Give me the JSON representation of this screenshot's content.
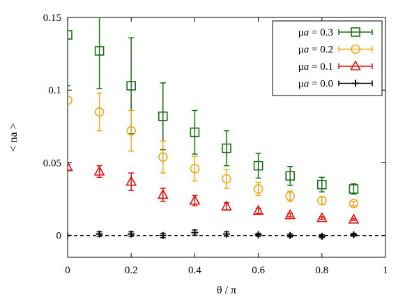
{
  "chart_data": {
    "type": "scatter",
    "xlabel": "θ / π",
    "ylabel": "< na >",
    "xlim": [
      0,
      1
    ],
    "ylim": [
      -0.015,
      0.15
    ],
    "x_ticks": [
      {
        "value": 0,
        "label": "0"
      },
      {
        "value": 0.2,
        "label": "0.2"
      },
      {
        "value": 0.4,
        "label": "0.4"
      },
      {
        "value": 0.6,
        "label": "0.6"
      },
      {
        "value": 0.8,
        "label": "0.8"
      },
      {
        "value": 1,
        "label": "1"
      }
    ],
    "y_ticks": [
      {
        "value": 0,
        "label": "0"
      },
      {
        "value": 0.05,
        "label": "0.05"
      },
      {
        "value": 0.1,
        "label": "0.1"
      },
      {
        "value": 0.15,
        "label": "0.15"
      }
    ],
    "grid": false,
    "legend_position": "top-right",
    "reference_line": {
      "y": 0,
      "style": "dashed",
      "color": "#000000"
    },
    "series": [
      {
        "name": "μa = 0.3",
        "legend_prefix": "μ",
        "legend_italic": "a",
        "legend_suffix": " = 0.3",
        "color": "#1a6e14",
        "marker": "square",
        "points": [
          {
            "x": 0,
            "y": 0.138,
            "err": 0.035
          },
          {
            "x": 0.1,
            "y": 0.127,
            "err": 0.026
          },
          {
            "x": 0.2,
            "y": 0.103,
            "err": 0.033
          },
          {
            "x": 0.3,
            "y": 0.082,
            "err": 0.023
          },
          {
            "x": 0.4,
            "y": 0.071,
            "err": 0.015
          },
          {
            "x": 0.5,
            "y": 0.06,
            "err": 0.012
          },
          {
            "x": 0.6,
            "y": 0.048,
            "err": 0.0085
          },
          {
            "x": 0.7,
            "y": 0.041,
            "err": 0.0065
          },
          {
            "x": 0.8,
            "y": 0.035,
            "err": 0.005
          },
          {
            "x": 0.9,
            "y": 0.032,
            "err": 0.0035
          }
        ]
      },
      {
        "name": "μa = 0.2",
        "legend_prefix": "μ",
        "legend_italic": "a",
        "legend_suffix": " = 0.2",
        "color": "#f0a81a",
        "marker": "circle",
        "points": [
          {
            "x": 0,
            "y": 0.093,
            "err": 0.0
          },
          {
            "x": 0.1,
            "y": 0.085,
            "err": 0.013
          },
          {
            "x": 0.2,
            "y": 0.072,
            "err": 0.014
          },
          {
            "x": 0.3,
            "y": 0.054,
            "err": 0.011
          },
          {
            "x": 0.4,
            "y": 0.046,
            "err": 0.0085
          },
          {
            "x": 0.5,
            "y": 0.039,
            "err": 0.0065
          },
          {
            "x": 0.6,
            "y": 0.032,
            "err": 0.0045
          },
          {
            "x": 0.7,
            "y": 0.027,
            "err": 0.0035
          },
          {
            "x": 0.8,
            "y": 0.024,
            "err": 0.0025
          },
          {
            "x": 0.9,
            "y": 0.022,
            "err": 0.0015
          }
        ]
      },
      {
        "name": "μa = 0.1",
        "legend_prefix": "μ",
        "legend_italic": "a",
        "legend_suffix": " = 0.1",
        "color": "#e3120b",
        "marker": "triangle",
        "points": [
          {
            "x": 0,
            "y": 0.047,
            "err": 0.002
          },
          {
            "x": 0.1,
            "y": 0.044,
            "err": 0.004
          },
          {
            "x": 0.2,
            "y": 0.037,
            "err": 0.006
          },
          {
            "x": 0.3,
            "y": 0.028,
            "err": 0.0045
          },
          {
            "x": 0.4,
            "y": 0.024,
            "err": 0.0035
          },
          {
            "x": 0.5,
            "y": 0.02,
            "err": 0.0025
          },
          {
            "x": 0.6,
            "y": 0.017,
            "err": 0.0018
          },
          {
            "x": 0.7,
            "y": 0.014,
            "err": 0.0012
          },
          {
            "x": 0.8,
            "y": 0.012,
            "err": 0.0008
          },
          {
            "x": 0.9,
            "y": 0.011,
            "err": 0.0006
          }
        ]
      },
      {
        "name": "μa = 0.0",
        "legend_prefix": "μ",
        "legend_italic": "a",
        "legend_suffix": " = 0.0",
        "color": "#000000",
        "marker": "plus",
        "points": [
          {
            "x": 0,
            "y": 0.0,
            "err": 0.0
          },
          {
            "x": 0.1,
            "y": 0.001,
            "err": 0.0015
          },
          {
            "x": 0.2,
            "y": 0.001,
            "err": 0.0015
          },
          {
            "x": 0.3,
            "y": 0.0,
            "err": 0.0015
          },
          {
            "x": 0.4,
            "y": 0.002,
            "err": 0.0018
          },
          {
            "x": 0.5,
            "y": 0.001,
            "err": 0.0015
          },
          {
            "x": 0.6,
            "y": 0.0005,
            "err": 0.001
          },
          {
            "x": 0.7,
            "y": 0.0,
            "err": 0.001
          },
          {
            "x": 0.8,
            "y": -0.0005,
            "err": 0.001
          },
          {
            "x": 0.9,
            "y": 0.0005,
            "err": 0.001
          }
        ]
      }
    ]
  }
}
